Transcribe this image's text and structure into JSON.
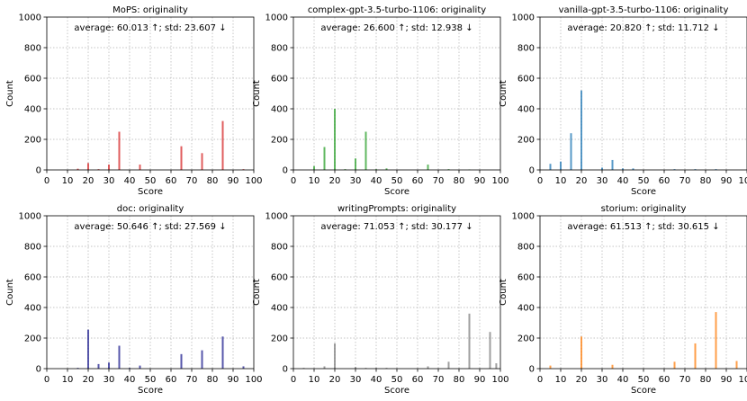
{
  "chart_data": [
    {
      "type": "bar",
      "title": "MoPS: originality",
      "annotation": "average: 60.013 ↑; std: 23.607 ↓",
      "xlabel": "Score",
      "ylabel": "Count",
      "xlim": [
        0,
        100
      ],
      "ylim": [
        0,
        1000
      ],
      "xticks": [
        0,
        10,
        20,
        30,
        40,
        50,
        60,
        70,
        80,
        90,
        100
      ],
      "yticks": [
        0,
        200,
        400,
        600,
        800,
        1000
      ],
      "grid": true,
      "color": "#d62728",
      "x": [
        15,
        20,
        25,
        30,
        35,
        45,
        65,
        75,
        85,
        95
      ],
      "values": [
        8,
        45,
        5,
        35,
        250,
        35,
        155,
        110,
        320,
        5
      ]
    },
    {
      "type": "bar",
      "title": "complex-gpt-3.5-turbo-1106: originality",
      "annotation": "average: 26.600 ↑; std: 12.938 ↓",
      "xlabel": "Score",
      "ylabel": "Count",
      "xlim": [
        0,
        100
      ],
      "ylim": [
        0,
        1000
      ],
      "xticks": [
        0,
        10,
        20,
        30,
        40,
        50,
        60,
        70,
        80,
        90,
        100
      ],
      "yticks": [
        0,
        200,
        400,
        600,
        800,
        1000
      ],
      "grid": true,
      "color": "#2ca02c",
      "x": [
        10,
        15,
        20,
        25,
        30,
        35,
        40,
        45,
        65,
        75,
        85
      ],
      "values": [
        25,
        150,
        400,
        5,
        75,
        250,
        5,
        10,
        35,
        5,
        3
      ]
    },
    {
      "type": "bar",
      "title": "vanilla-gpt-3.5-turbo-1106: originality",
      "annotation": "average: 20.820 ↑; std: 11.712 ↓",
      "xlabel": "Score",
      "ylabel": "Count",
      "xlim": [
        0,
        100
      ],
      "ylim": [
        0,
        1000
      ],
      "xticks": [
        0,
        10,
        20,
        30,
        40,
        50,
        60,
        70,
        80,
        90,
        100
      ],
      "yticks": [
        0,
        200,
        400,
        600,
        800,
        1000
      ],
      "grid": true,
      "color": "#1f77b4",
      "x": [
        5,
        10,
        15,
        20,
        30,
        35,
        40,
        45,
        65,
        75,
        85
      ],
      "values": [
        40,
        55,
        240,
        520,
        15,
        65,
        10,
        10,
        5,
        5,
        5
      ]
    },
    {
      "type": "bar",
      "title": "doc: originality",
      "annotation": "average: 50.646 ↑; std: 27.569 ↓",
      "xlabel": "Score",
      "ylabel": "Count",
      "xlim": [
        0,
        100
      ],
      "ylim": [
        0,
        1000
      ],
      "xticks": [
        0,
        10,
        20,
        30,
        40,
        50,
        60,
        70,
        80,
        90,
        100
      ],
      "yticks": [
        0,
        200,
        400,
        600,
        800,
        1000
      ],
      "grid": true,
      "color": "#1f1f8f",
      "x": [
        15,
        20,
        25,
        30,
        35,
        40,
        45,
        65,
        75,
        85,
        95
      ],
      "values": [
        5,
        255,
        30,
        40,
        150,
        5,
        20,
        95,
        120,
        210,
        15
      ]
    },
    {
      "type": "bar",
      "title": "writingPrompts: originality",
      "annotation": "average: 71.053 ↑; std: 30.177 ↓",
      "xlabel": "Score",
      "ylabel": "Count",
      "xlim": [
        0,
        100
      ],
      "ylim": [
        0,
        1000
      ],
      "xticks": [
        0,
        10,
        20,
        30,
        40,
        50,
        60,
        70,
        80,
        90,
        100
      ],
      "yticks": [
        0,
        200,
        400,
        600,
        800,
        1000
      ],
      "grid": true,
      "color": "#7f7f7f",
      "x": [
        5,
        15,
        20,
        30,
        35,
        40,
        45,
        65,
        75,
        85,
        95,
        98
      ],
      "values": [
        5,
        15,
        165,
        10,
        5,
        5,
        5,
        15,
        45,
        360,
        240,
        35
      ]
    },
    {
      "type": "bar",
      "title": "storium: originality",
      "annotation": "average: 61.513 ↑; std: 30.615 ↓",
      "xlabel": "Score",
      "ylabel": "Count",
      "xlim": [
        0,
        100
      ],
      "ylim": [
        0,
        1000
      ],
      "xticks": [
        0,
        10,
        20,
        30,
        40,
        50,
        60,
        70,
        80,
        90,
        100
      ],
      "yticks": [
        0,
        200,
        400,
        600,
        800,
        1000
      ],
      "grid": true,
      "color": "#ff7f0e",
      "x": [
        5,
        20,
        35,
        65,
        75,
        85,
        95
      ],
      "values": [
        20,
        210,
        25,
        45,
        165,
        370,
        50
      ]
    }
  ]
}
